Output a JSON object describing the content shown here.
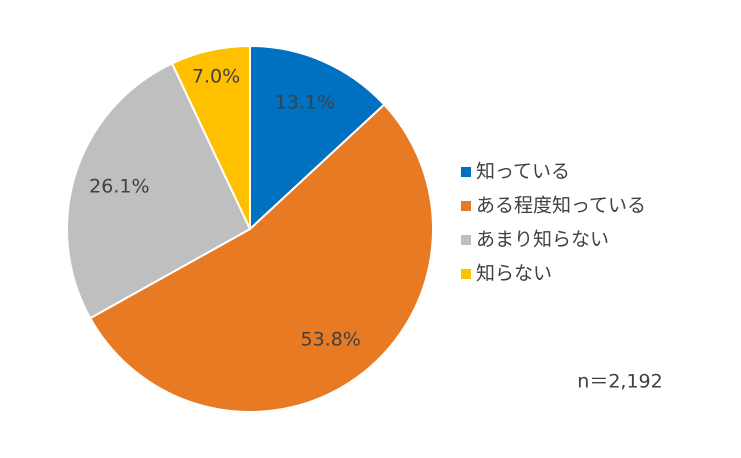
{
  "chart_data": {
    "type": "pie",
    "categories": [
      "知っている",
      "ある程度知っている",
      "あまり知らない",
      "知らない"
    ],
    "values": [
      13.1,
      53.8,
      26.1,
      7.0
    ],
    "value_labels": [
      "13.1%",
      "53.8%",
      "26.1%",
      "7.0%"
    ],
    "colors": [
      "#0070c0",
      "#e97a24",
      "#bfbfbf",
      "#ffc000"
    ],
    "annotation": "n＝2,192",
    "legend": "right"
  }
}
